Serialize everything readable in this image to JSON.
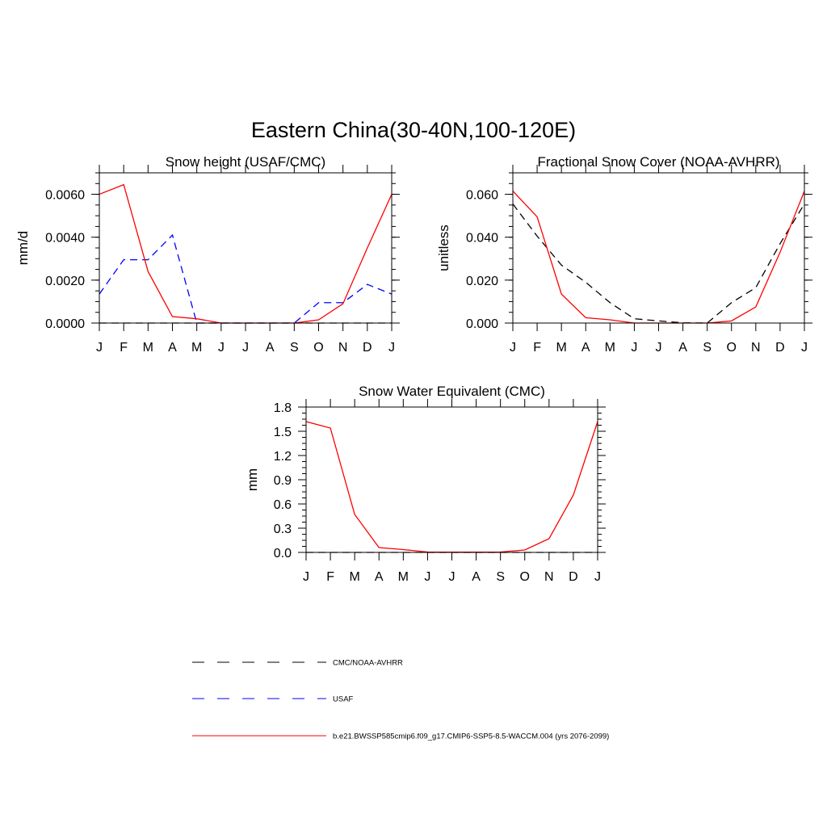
{
  "figure": {
    "title": "Eastern China(30-40N,100-120E)"
  },
  "colors": {
    "cmc_noaa": "#000000",
    "usaf": "#0000ff",
    "model": "#ff0000"
  },
  "legend": {
    "items": [
      {
        "label": "CMC/NOAA-AVHRR",
        "color": "#000000",
        "style": "dashed"
      },
      {
        "label": "USAF",
        "color": "#0000ff",
        "style": "dashed"
      },
      {
        "label": "b.e21.BWSSP585cmip6.f09_g17.CMIP6-SSP5-8.5-WACCM.004 (yrs 2076-2099)",
        "color": "#ff0000",
        "style": "solid"
      }
    ]
  },
  "chart_data": [
    {
      "type": "line",
      "title": "Snow height (USAF/CMC)",
      "ylabel": "mm/d",
      "xlabel": "",
      "categories": [
        "J",
        "F",
        "M",
        "A",
        "M",
        "J",
        "J",
        "A",
        "S",
        "O",
        "N",
        "D",
        "J"
      ],
      "ylim": [
        0,
        0.007
      ],
      "yticks": [
        0,
        0.002,
        0.004,
        0.006
      ],
      "ytick_labels": [
        "0.0000",
        "0.0020",
        "0.0040",
        "0.0060"
      ],
      "grid": false,
      "series": [
        {
          "key": "cmc_noaa",
          "style": "dashed",
          "values": [
            0,
            0,
            0,
            0,
            0,
            0,
            0,
            0,
            0,
            0,
            0,
            0,
            0
          ]
        },
        {
          "key": "usaf",
          "style": "dashed",
          "values": [
            0.00135,
            0.00295,
            0.00295,
            0.0041,
            0,
            0,
            0,
            0,
            0,
            0.00095,
            0.00095,
            0.0018,
            0.00135
          ]
        },
        {
          "key": "model",
          "style": "solid",
          "values": [
            0.006,
            0.00645,
            0.0024,
            0.0003,
            0.0002,
            0,
            0,
            0,
            0,
            0.00015,
            0.0009,
            0.0035,
            0.006
          ]
        }
      ]
    },
    {
      "type": "line",
      "title": "Fractional Snow Cover (NOAA-AVHRR)",
      "ylabel": "unitless",
      "xlabel": "",
      "categories": [
        "J",
        "F",
        "M",
        "A",
        "M",
        "J",
        "J",
        "A",
        "S",
        "O",
        "N",
        "D",
        "J"
      ],
      "ylim": [
        0,
        0.07
      ],
      "yticks": [
        0,
        0.02,
        0.04,
        0.06
      ],
      "ytick_labels": [
        "0.000",
        "0.020",
        "0.040",
        "0.060"
      ],
      "grid": false,
      "series": [
        {
          "key": "cmc_noaa",
          "style": "dashed",
          "values": [
            0.0555,
            0.0405,
            0.027,
            0.019,
            0.0095,
            0.002,
            0.001,
            0.0001,
            0,
            0.0095,
            0.0165,
            0.037,
            0.0555
          ]
        },
        {
          "key": "model",
          "style": "solid",
          "values": [
            0.0615,
            0.0495,
            0.0135,
            0.0025,
            0.0015,
            0,
            0,
            0,
            0,
            0.001,
            0.0075,
            0.033,
            0.0615
          ]
        }
      ]
    },
    {
      "type": "line",
      "title": "Snow Water Equivalent (CMC)",
      "ylabel": "mm",
      "xlabel": "",
      "categories": [
        "J",
        "F",
        "M",
        "A",
        "M",
        "J",
        "J",
        "A",
        "S",
        "O",
        "N",
        "D",
        "J"
      ],
      "ylim": [
        0,
        1.8
      ],
      "yticks": [
        0,
        0.3,
        0.6,
        0.9,
        1.2,
        1.5,
        1.8
      ],
      "ytick_labels": [
        "0.0",
        "0.3",
        "0.6",
        "0.9",
        "1.2",
        "1.5",
        "1.8"
      ],
      "grid": false,
      "series": [
        {
          "key": "cmc_noaa",
          "style": "dashed",
          "values": [
            0,
            0,
            0,
            0,
            0,
            0,
            0,
            0,
            0,
            0,
            0,
            0,
            0
          ]
        },
        {
          "key": "model",
          "style": "solid",
          "values": [
            1.62,
            1.54,
            0.47,
            0.06,
            0.035,
            0.005,
            0.003,
            0.003,
            0.005,
            0.03,
            0.17,
            0.71,
            1.62
          ]
        }
      ]
    }
  ]
}
